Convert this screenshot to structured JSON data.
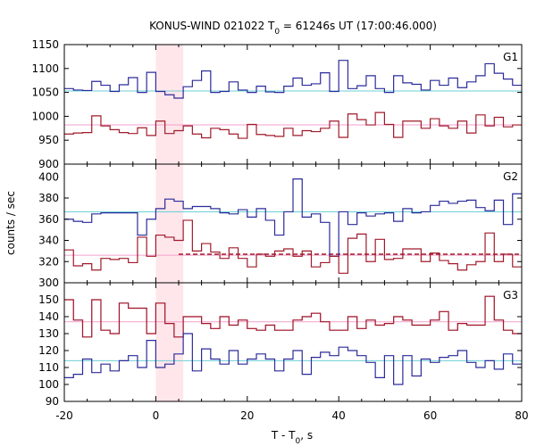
{
  "chart_data": {
    "type": "line",
    "title_prefix": "KONUS-WIND 021022 T",
    "title_sub": "0",
    "title_suffix": " = 61246s UT (17:00:46.000)",
    "xlabel_prefix": "T - T",
    "xlabel_sub": "0",
    "xlabel_suffix": ", s",
    "ylabel": "counts / sec",
    "xlim": [
      -20,
      80
    ],
    "x_ticks": [
      "-20",
      "0",
      "20",
      "40",
      "60",
      "80"
    ],
    "highlight": [
      0,
      6
    ],
    "colors": {
      "blue": "#2b2b9b",
      "red": "#a01a2a",
      "cyan": "#6ccfd6",
      "pink": "#f2a0cc",
      "shade": "#ffe6ea"
    },
    "panels": [
      {
        "name": "G1",
        "ylim": [
          900,
          1150
        ],
        "y_ticks": [
          "900",
          "950",
          "1000",
          "1050",
          "1100",
          "1150"
        ],
        "bin_edges": [
          -20,
          -18,
          -16,
          -14,
          -12,
          -10,
          -8,
          -6,
          -4,
          -2,
          0,
          2,
          4,
          6,
          8,
          10,
          12,
          14,
          16,
          18,
          20,
          22,
          24,
          26,
          28,
          30,
          32,
          34,
          36,
          38,
          40,
          42,
          44,
          46,
          48,
          50,
          52,
          54,
          56,
          58,
          60,
          62,
          64,
          66,
          68,
          70,
          72,
          74,
          76,
          78,
          80
        ],
        "series": [
          {
            "color": "blue",
            "values": [
              1058,
              1055,
              1054,
              1073,
              1065,
              1052,
              1066,
              1081,
              1050,
              1092,
              1052,
              1045,
              1038,
              1062,
              1075,
              1095,
              1050,
              1052,
              1072,
              1055,
              1050,
              1063,
              1051,
              1050,
              1063,
              1080,
              1065,
              1068,
              1091,
              1052,
              1117,
              1058,
              1064,
              1085,
              1058,
              1050,
              1085,
              1070,
              1067,
              1055,
              1075,
              1065,
              1080,
              1060,
              1072,
              1085,
              1110,
              1090,
              1078,
              1065
            ]
          },
          {
            "color": "red",
            "values": [
              963,
              965,
              966,
              1001,
              980,
              972,
              966,
              964,
              976,
              960,
              990,
              964,
              970,
              980,
              963,
              955,
              975,
              972,
              963,
              954,
              983,
              962,
              960,
              958,
              975,
              960,
              970,
              968,
              975,
              990,
              956,
              1005,
              993,
              982,
              1008,
              983,
              956,
              990,
              990,
              975,
              995,
              980,
              975,
              990,
              965,
              1003,
              980,
              998,
              978,
              982
            ]
          }
        ],
        "ref_lines": [
          {
            "color": "cyan",
            "value": 1053
          },
          {
            "color": "pink",
            "value": 982
          }
        ]
      },
      {
        "name": "G2",
        "ylim": [
          300,
          412
        ],
        "y_ticks": [
          "300",
          "320",
          "340",
          "360",
          "380",
          "400"
        ],
        "bin_edges": [
          -20,
          -18,
          -16,
          -14,
          -12,
          -10,
          -8,
          -6,
          -4,
          -2,
          0,
          2,
          4,
          6,
          8,
          10,
          12,
          14,
          16,
          18,
          20,
          22,
          24,
          26,
          28,
          30,
          32,
          34,
          36,
          38,
          40,
          42,
          44,
          46,
          48,
          50,
          52,
          54,
          56,
          58,
          60,
          62,
          64,
          66,
          68,
          70,
          72,
          74,
          76,
          78,
          80
        ],
        "series": [
          {
            "color": "blue",
            "values": [
              360,
              358,
              357,
              365,
              366,
              366,
              366,
              366,
              345,
              360,
              370,
              379,
              377,
              370,
              372,
              372,
              370,
              366,
              365,
              369,
              362,
              370,
              359,
              345,
              367,
              398,
              362,
              365,
              357,
              325,
              367,
              355,
              366,
              363,
              365,
              366,
              358,
              370,
              366,
              367,
              373,
              377,
              375,
              377,
              378,
              371,
              368,
              378,
              355,
              384
            ]
          },
          {
            "color": "red",
            "values": [
              331,
              316,
              318,
              312,
              323,
              322,
              323,
              319,
              343,
              325,
              345,
              343,
              340,
              359,
              330,
              337,
              329,
              323,
              333,
              323,
              315,
              327,
              325,
              330,
              332,
              325,
              330,
              315,
              319,
              325,
              309,
              342,
              346,
              320,
              341,
              322,
              323,
              332,
              332,
              320,
              328,
              321,
              318,
              312,
              317,
              320,
              347,
              320,
              327,
              315
            ]
          }
        ],
        "ref_lines": [
          {
            "color": "cyan",
            "value": 367
          },
          {
            "color": "pink",
            "value": 326
          },
          {
            "color": "red",
            "value": 327,
            "dashed": true,
            "from": 5
          }
        ]
      },
      {
        "name": "G3",
        "ylim": [
          90,
          160
        ],
        "y_ticks": [
          "90",
          "100",
          "110",
          "120",
          "130",
          "140",
          "150"
        ],
        "bin_edges": [
          -20,
          -18,
          -16,
          -14,
          -12,
          -10,
          -8,
          -6,
          -4,
          -2,
          0,
          2,
          4,
          6,
          8,
          10,
          12,
          14,
          16,
          18,
          20,
          22,
          24,
          26,
          28,
          30,
          32,
          34,
          36,
          38,
          40,
          42,
          44,
          46,
          48,
          50,
          52,
          54,
          56,
          58,
          60,
          62,
          64,
          66,
          68,
          70,
          72,
          74,
          76,
          78,
          80
        ],
        "series": [
          {
            "color": "pink",
            "values": [
              150,
              138,
              128,
              150,
              132,
              130,
              148,
              145,
              145,
              130,
              148,
              136,
              128,
              140,
              140,
              136,
              133,
              140,
              135,
              138,
              133,
              132,
              135,
              132,
              132,
              138,
              140,
              142,
              137,
              132,
              132,
              140,
              133,
              138,
              135,
              136,
              140,
              138,
              135,
              135,
              138,
              143,
              132,
              136,
              135,
              135,
              152,
              138,
              132,
              130
            ]
          },
          {
            "color": "red",
            "values": [
              150,
              138,
              128,
              150,
              132,
              130,
              148,
              145,
              145,
              130,
              148,
              136,
              128,
              140,
              140,
              136,
              133,
              140,
              135,
              138,
              133,
              132,
              135,
              132,
              132,
              138,
              140,
              142,
              137,
              132,
              132,
              140,
              133,
              138,
              135,
              136,
              140,
              138,
              135,
              135,
              138,
              143,
              132,
              136,
              135,
              135,
              152,
              138,
              132,
              130
            ]
          },
          {
            "color": "blue",
            "values": [
              104,
              106,
              115,
              107,
              112,
              108,
              114,
              117,
              110,
              126,
              110,
              112,
              118,
              130,
              108,
              121,
              115,
              112,
              120,
              112,
              115,
              118,
              115,
              108,
              115,
              120,
              106,
              116,
              119,
              117,
              122,
              120,
              117,
              113,
              104,
              117,
              100,
              117,
              105,
              115,
              113,
              116,
              117,
              120,
              113,
              110,
              114,
              109,
              118,
              112
            ]
          }
        ],
        "ref_lines": [
          {
            "color": "cyan",
            "value": 114
          },
          {
            "color": "pink",
            "value": 137
          }
        ]
      }
    ]
  }
}
